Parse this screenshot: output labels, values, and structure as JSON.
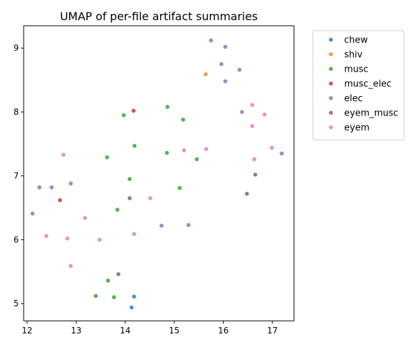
{
  "chart_data": {
    "type": "scatter",
    "title": "UMAP of per-file artifact summaries",
    "xlabel": "",
    "ylabel": "",
    "xlim": [
      11.93,
      17.44
    ],
    "ylim": [
      4.73,
      9.35
    ],
    "xticks": [
      12,
      13,
      14,
      15,
      16,
      17
    ],
    "yticks": [
      5,
      6,
      7,
      8,
      9
    ],
    "grid": false,
    "legend_position": "outside-right-top",
    "series": [
      {
        "name": "chew",
        "color": "#1f77b4",
        "points": [
          [
            14.18,
            5.11
          ],
          [
            14.13,
            4.94
          ]
        ]
      },
      {
        "name": "shiv",
        "color": "#ff7f0e",
        "points": [
          [
            15.64,
            8.59
          ]
        ]
      },
      {
        "name": "musc",
        "color": "#2ca02c",
        "points": [
          [
            13.97,
            7.95
          ],
          [
            14.86,
            8.08
          ],
          [
            15.18,
            7.88
          ],
          [
            14.19,
            7.47
          ],
          [
            14.85,
            7.36
          ],
          [
            13.63,
            7.29
          ],
          [
            15.46,
            7.26
          ],
          [
            14.09,
            6.95
          ],
          [
            15.11,
            6.81
          ],
          [
            13.84,
            6.47
          ],
          [
            13.65,
            5.36
          ],
          [
            13.4,
            5.12
          ],
          [
            13.77,
            5.1
          ]
        ]
      },
      {
        "name": "musc_elec",
        "color": "#d62728",
        "points": [
          [
            14.17,
            8.02
          ],
          [
            12.67,
            6.62
          ]
        ]
      },
      {
        "name": "elec",
        "color": "#9467bd",
        "points": [
          [
            15.75,
            9.12
          ],
          [
            16.04,
            9.02
          ],
          [
            15.96,
            8.75
          ],
          [
            16.33,
            8.66
          ],
          [
            16.04,
            8.48
          ],
          [
            16.38,
            8.0
          ],
          [
            17.19,
            7.35
          ],
          [
            12.89,
            6.88
          ],
          [
            12.25,
            6.82
          ],
          [
            12.5,
            6.82
          ],
          [
            12.11,
            6.41
          ],
          [
            14.74,
            6.22
          ],
          [
            15.29,
            6.23
          ]
        ]
      },
      {
        "name": "eyem_musc",
        "color": "#8c564b",
        "points": [
          [
            16.65,
            7.02
          ],
          [
            16.48,
            6.72
          ],
          [
            14.09,
            6.65
          ],
          [
            13.86,
            5.46
          ]
        ]
      },
      {
        "name": "eyem",
        "color": "#e377c2",
        "points": [
          [
            16.59,
            8.11
          ],
          [
            16.84,
            7.96
          ],
          [
            16.59,
            7.78
          ],
          [
            16.99,
            7.44
          ],
          [
            15.65,
            7.42
          ],
          [
            15.2,
            7.4
          ],
          [
            12.74,
            7.33
          ],
          [
            16.63,
            7.26
          ],
          [
            14.51,
            6.65
          ],
          [
            13.18,
            6.34
          ],
          [
            14.18,
            6.09
          ],
          [
            12.39,
            6.06
          ],
          [
            12.82,
            6.02
          ],
          [
            13.48,
            6.0
          ],
          [
            12.89,
            5.59
          ]
        ]
      }
    ]
  }
}
